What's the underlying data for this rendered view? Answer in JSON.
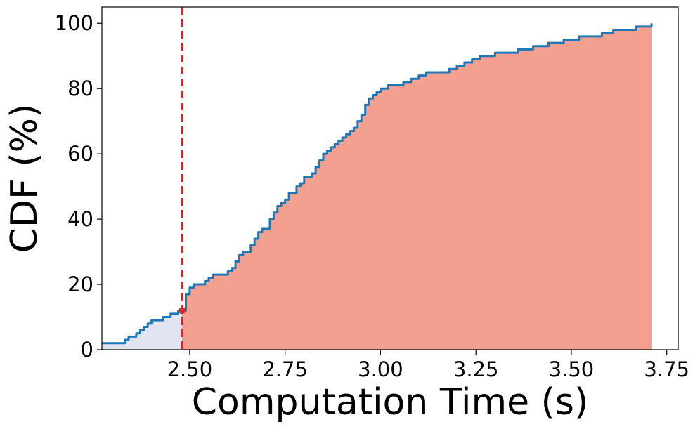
{
  "chart_data": {
    "type": "area",
    "title": "",
    "xlabel": "Computation Time (s)",
    "ylabel": "CDF (%)",
    "xlim": [
      2.27,
      3.78
    ],
    "ylim": [
      0,
      105
    ],
    "xticks": [
      2.5,
      2.75,
      3.0,
      3.25,
      3.5,
      3.75
    ],
    "xtick_labels": [
      "2.50",
      "2.75",
      "3.00",
      "3.25",
      "3.50",
      "3.75"
    ],
    "yticks": [
      0,
      20,
      40,
      60,
      80,
      100
    ],
    "ytick_labels": [
      "0",
      "20",
      "40",
      "60",
      "80",
      "100"
    ],
    "grid": false,
    "threshold": {
      "x": 2.48,
      "y": 12,
      "color": "#d62728",
      "style": "dashed"
    },
    "fill_colors": {
      "below": "#e1e4f1",
      "above": "#f4a090"
    },
    "line_color": "#1f77b4",
    "series": [
      {
        "x": [
          2.27,
          2.28,
          2.29,
          2.3,
          2.31,
          2.32,
          2.33,
          2.34,
          2.35,
          2.36,
          2.37,
          2.38,
          2.39,
          2.4,
          2.41,
          2.42,
          2.43,
          2.44,
          2.45,
          2.46,
          2.47,
          2.48,
          2.49,
          2.5,
          2.51,
          2.52,
          2.53,
          2.54,
          2.55,
          2.56,
          2.57,
          2.58,
          2.59,
          2.6,
          2.61,
          2.62,
          2.63,
          2.64,
          2.65,
          2.66,
          2.67,
          2.68,
          2.69,
          2.7,
          2.71,
          2.72,
          2.73,
          2.74,
          2.75,
          2.76,
          2.77,
          2.78,
          2.79,
          2.8,
          2.81,
          2.82,
          2.83,
          2.84,
          2.85,
          2.86,
          2.87,
          2.88,
          2.89,
          2.9,
          2.91,
          2.92,
          2.93,
          2.94,
          2.95,
          2.96,
          2.97,
          2.98,
          2.99,
          3.0,
          3.02,
          3.04,
          3.06,
          3.08,
          3.1,
          3.12,
          3.14,
          3.16,
          3.18,
          3.2,
          3.22,
          3.24,
          3.26,
          3.28,
          3.3,
          3.32,
          3.34,
          3.36,
          3.38,
          3.4,
          3.42,
          3.44,
          3.46,
          3.48,
          3.5,
          3.52,
          3.55,
          3.58,
          3.61,
          3.64,
          3.67,
          3.7,
          3.71
        ],
        "y": [
          2,
          2,
          2,
          2,
          2,
          2,
          3,
          4,
          4,
          5,
          6,
          7,
          8,
          9,
          9,
          9,
          10,
          10,
          11,
          11,
          12,
          12,
          17,
          19,
          20,
          20,
          20,
          21,
          22,
          23,
          23,
          23,
          23,
          24,
          25,
          27,
          29,
          30,
          30,
          32,
          34,
          36,
          37,
          37,
          40,
          42,
          44,
          45,
          46,
          48,
          48,
          50,
          51,
          53,
          53,
          54,
          56,
          58,
          60,
          61,
          62,
          63,
          64,
          65,
          66,
          67,
          68,
          70,
          72,
          75,
          77,
          78,
          79,
          80,
          81,
          81,
          82,
          83,
          84,
          85,
          85,
          85,
          86,
          87,
          88,
          89,
          90,
          90,
          91,
          91,
          91,
          92,
          92,
          93,
          93,
          94,
          94,
          95,
          95,
          96,
          96,
          97,
          98,
          98,
          99,
          99,
          100
        ]
      }
    ]
  }
}
